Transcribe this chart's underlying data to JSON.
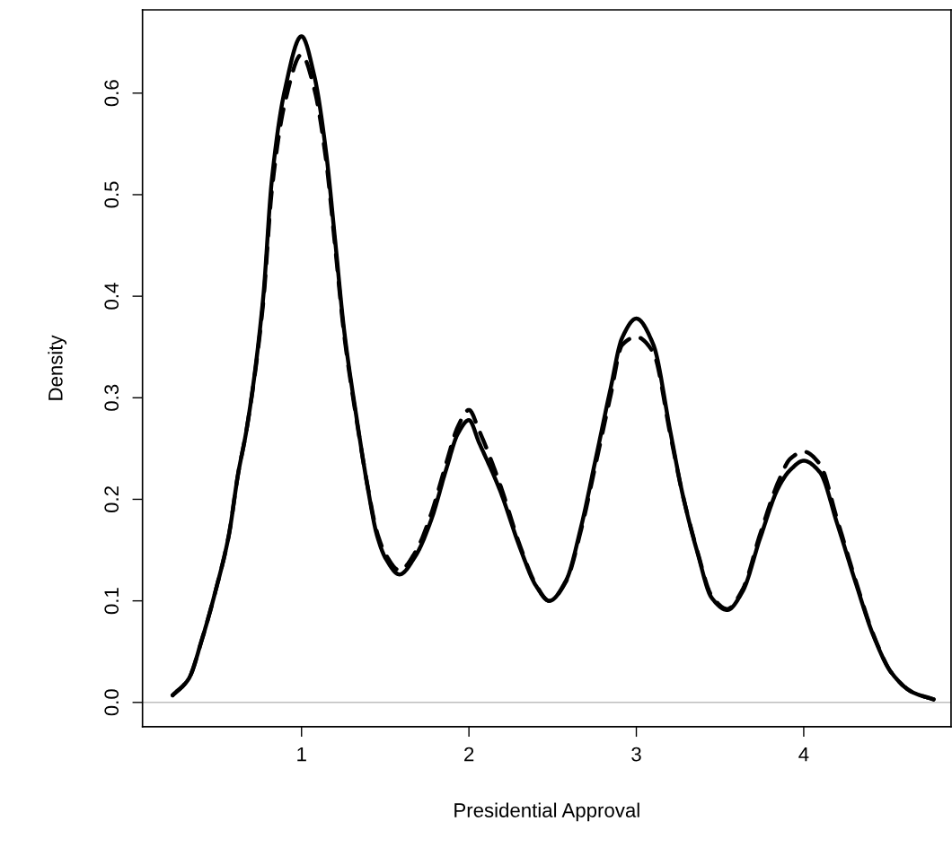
{
  "chart_data": {
    "type": "line",
    "xlabel": "Presidential Approval",
    "ylabel": "Density",
    "xlim": [
      0.05,
      4.88
    ],
    "ylim": [
      -0.024,
      0.682
    ],
    "xticks": [
      1,
      2,
      3,
      4
    ],
    "yticks": [
      {
        "value": 0,
        "label": "0.0"
      },
      0.1,
      0.2,
      0.3,
      0.4,
      0.5,
      0.6
    ],
    "grid": false,
    "legend": false,
    "marker": "none",
    "ref_lines": [
      {
        "axis": "y",
        "value": 0,
        "color": "#bebebe"
      }
    ],
    "x": [
      0.23,
      0.325,
      0.405,
      0.485,
      0.566,
      0.62,
      0.673,
      0.77,
      0.823,
      0.9,
      1.0,
      1.075,
      1.145,
      1.2,
      1.254,
      1.33,
      1.398,
      1.45,
      1.505,
      1.585,
      1.68,
      1.773,
      1.865,
      1.935,
      2.0,
      2.06,
      2.185,
      2.31,
      2.4,
      2.48,
      2.58,
      2.67,
      2.755,
      2.846,
      2.915,
      3.0,
      3.1,
      3.205,
      3.275,
      3.366,
      3.45,
      3.543,
      3.634,
      3.74,
      3.85,
      3.92,
      4.0,
      4.095,
      4.2,
      4.31,
      4.418,
      4.525,
      4.65,
      4.776
    ],
    "series": [
      {
        "color": "#000000",
        "line_style": "solid",
        "values": [
          0.007,
          0.023,
          0.062,
          0.109,
          0.165,
          0.224,
          0.27,
          0.397,
          0.515,
          0.603,
          0.656,
          0.618,
          0.544,
          0.456,
          0.367,
          0.279,
          0.209,
          0.165,
          0.141,
          0.126,
          0.144,
          0.179,
          0.23,
          0.265,
          0.278,
          0.256,
          0.209,
          0.15,
          0.115,
          0.1,
          0.12,
          0.173,
          0.238,
          0.309,
          0.359,
          0.378,
          0.353,
          0.265,
          0.206,
          0.147,
          0.103,
          0.091,
          0.109,
          0.162,
          0.212,
          0.229,
          0.238,
          0.227,
          0.176,
          0.118,
          0.065,
          0.029,
          0.01,
          0.003
        ]
      },
      {
        "color": "#000000",
        "line_style": "dashed",
        "values": [
          0.007,
          0.023,
          0.062,
          0.109,
          0.165,
          0.224,
          0.27,
          0.392,
          0.505,
          0.59,
          0.638,
          0.605,
          0.536,
          0.45,
          0.363,
          0.277,
          0.21,
          0.168,
          0.145,
          0.13,
          0.148,
          0.185,
          0.236,
          0.272,
          0.288,
          0.268,
          0.215,
          0.152,
          0.116,
          0.1,
          0.119,
          0.17,
          0.233,
          0.302,
          0.352,
          0.36,
          0.345,
          0.262,
          0.206,
          0.148,
          0.105,
          0.092,
          0.111,
          0.166,
          0.218,
          0.24,
          0.247,
          0.235,
          0.18,
          0.12,
          0.066,
          0.029,
          0.01,
          0.003
        ]
      }
    ]
  }
}
